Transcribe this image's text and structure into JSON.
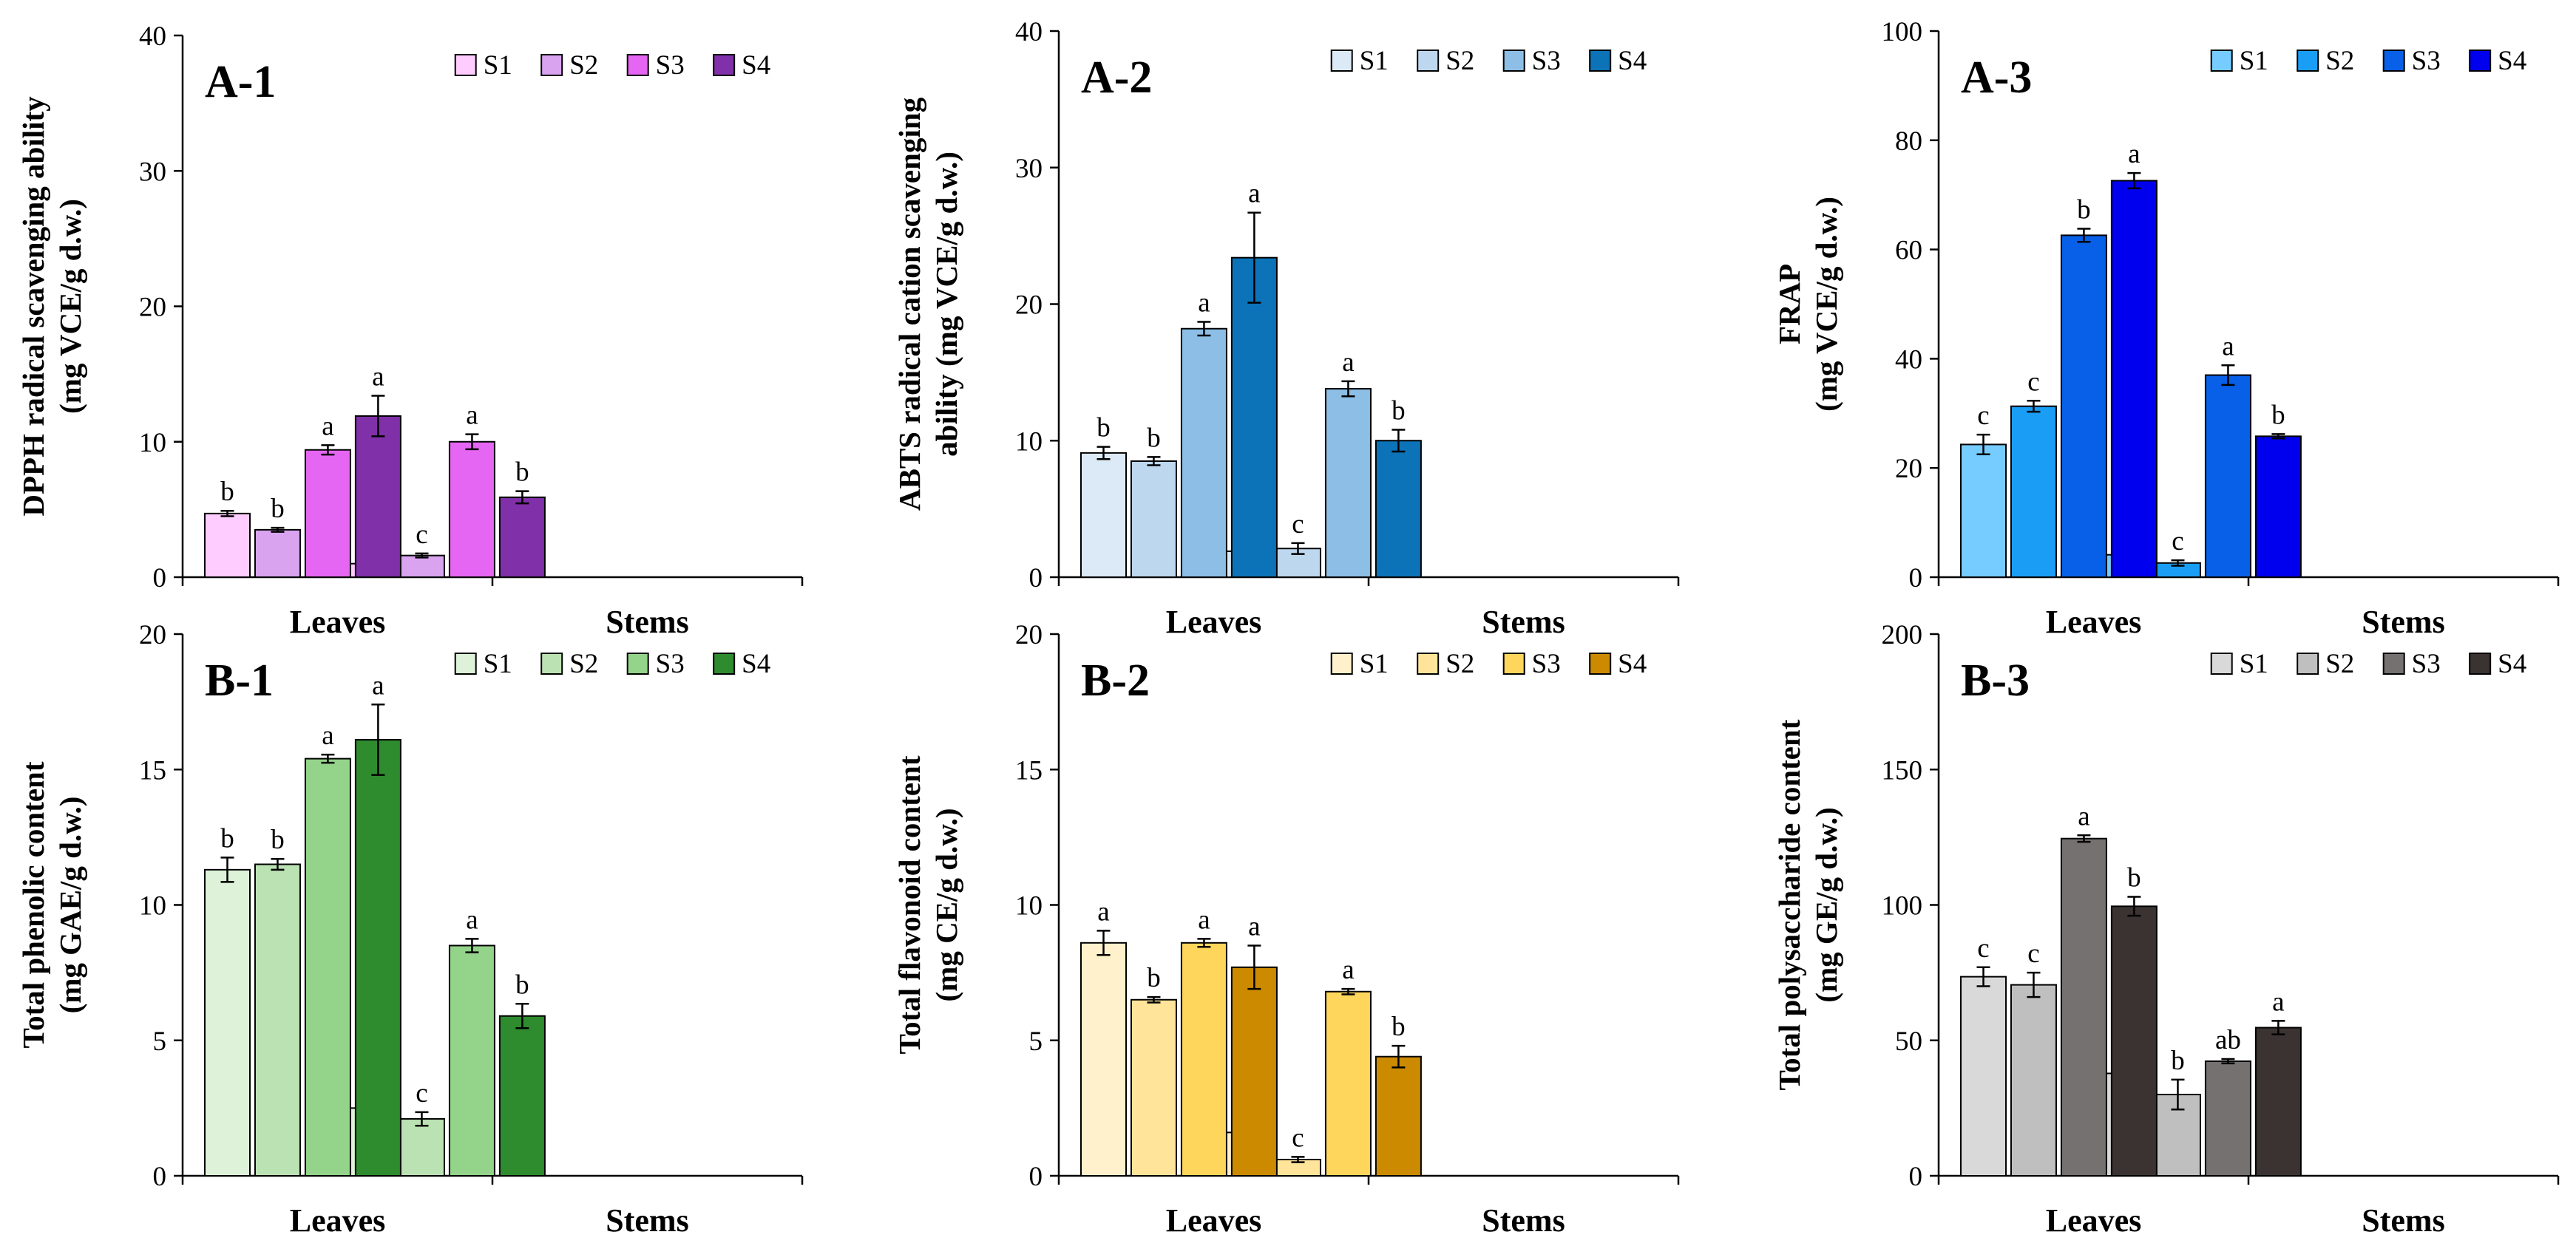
{
  "chart_data": [
    {
      "id": "A-1",
      "type": "bar",
      "panel_label": "A-1",
      "ylabel_lines": [
        "DPPH radical scavenging  ability",
        "(mg VCE/g d.w.)"
      ],
      "ylim": [
        0,
        40
      ],
      "yticks": [
        0,
        10,
        20,
        30,
        40
      ],
      "categories": [
        "Leaves",
        "Stems"
      ],
      "legend_position": "top-right",
      "series": [
        {
          "name": "S1",
          "color": "#FFCCFF",
          "values": [
            4.7,
            1.0
          ],
          "errors": [
            0.2,
            0.1
          ],
          "letters": [
            "b",
            "c"
          ]
        },
        {
          "name": "S2",
          "color": "#D9A3F0",
          "values": [
            3.5,
            1.6
          ],
          "errors": [
            0.15,
            0.15
          ],
          "letters": [
            "b",
            "c"
          ]
        },
        {
          "name": "S3",
          "color": "#E566F2",
          "values": [
            9.4,
            10.0
          ],
          "errors": [
            0.35,
            0.55
          ],
          "letters": [
            "a",
            "a"
          ]
        },
        {
          "name": "S4",
          "color": "#8030A8",
          "values": [
            11.9,
            5.9
          ],
          "errors": [
            1.5,
            0.45
          ],
          "letters": [
            "a",
            "b"
          ]
        }
      ]
    },
    {
      "id": "A-2",
      "type": "bar",
      "panel_label": "A-2",
      "ylabel_lines": [
        "ABTS radical cation scavenging",
        "ability (mg VCE/g d.w.)"
      ],
      "ylim": [
        0,
        40
      ],
      "yticks": [
        0,
        10,
        20,
        30,
        40
      ],
      "categories": [
        "Leaves",
        "Stems"
      ],
      "legend_position": "top-right",
      "series": [
        {
          "name": "S1",
          "color": "#DCEAF7",
          "values": [
            9.1,
            1.9
          ],
          "errors": [
            0.45,
            0.3
          ],
          "letters": [
            "b",
            "c"
          ]
        },
        {
          "name": "S2",
          "color": "#BDD7EE",
          "values": [
            8.5,
            2.1
          ],
          "errors": [
            0.3,
            0.4
          ],
          "letters": [
            "b",
            "c"
          ]
        },
        {
          "name": "S3",
          "color": "#8DBFE6",
          "values": [
            18.2,
            13.8
          ],
          "errors": [
            0.5,
            0.55
          ],
          "letters": [
            "a",
            "a"
          ]
        },
        {
          "name": "S4",
          "color": "#0C73B8",
          "values": [
            23.4,
            10.0
          ],
          "errors": [
            3.3,
            0.8
          ],
          "letters": [
            "a",
            "b"
          ]
        }
      ]
    },
    {
      "id": "A-3",
      "type": "bar",
      "panel_label": "A-3",
      "ylabel_lines": [
        "FRAP",
        "(mg VCE/g d.w.)"
      ],
      "ylim": [
        0,
        100
      ],
      "yticks": [
        0,
        20,
        40,
        60,
        80,
        100
      ],
      "categories": [
        "Leaves",
        "Stems"
      ],
      "legend_position": "top-right",
      "series": [
        {
          "name": "S1",
          "color": "#77CCFF",
          "values": [
            24.3,
            4.1
          ],
          "errors": [
            1.8,
            1.1
          ],
          "letters": [
            "c",
            "c"
          ]
        },
        {
          "name": "S2",
          "color": "#1A9EF5",
          "values": [
            31.3,
            2.6
          ],
          "errors": [
            1.0,
            0.5
          ],
          "letters": [
            "c",
            "c"
          ]
        },
        {
          "name": "S3",
          "color": "#0860E8",
          "values": [
            62.6,
            37.0
          ],
          "errors": [
            1.2,
            1.8
          ],
          "letters": [
            "b",
            "a"
          ]
        },
        {
          "name": "S4",
          "color": "#0000EE",
          "values": [
            72.6,
            25.8
          ],
          "errors": [
            1.4,
            0.4
          ],
          "letters": [
            "a",
            "b"
          ]
        }
      ]
    },
    {
      "id": "B-1",
      "type": "bar",
      "panel_label": "B-1",
      "ylabel_lines": [
        "Total phenolic content",
        "(mg GAE/g d.w.)"
      ],
      "ylim": [
        0,
        20
      ],
      "yticks": [
        0,
        5,
        10,
        15,
        20
      ],
      "categories": [
        "Leaves",
        "Stems"
      ],
      "legend_position": "top-right",
      "series": [
        {
          "name": "S1",
          "color": "#DDF2D8",
          "values": [
            11.3,
            2.5
          ],
          "errors": [
            0.45,
            0.05
          ],
          "letters": [
            "b",
            "c"
          ]
        },
        {
          "name": "S2",
          "color": "#BBE2B2",
          "values": [
            11.5,
            2.1
          ],
          "errors": [
            0.2,
            0.25
          ],
          "letters": [
            "b",
            "c"
          ]
        },
        {
          "name": "S3",
          "color": "#94D38A",
          "values": [
            15.4,
            8.5
          ],
          "errors": [
            0.15,
            0.25
          ],
          "letters": [
            "a",
            "a"
          ]
        },
        {
          "name": "S4",
          "color": "#2E8B2E",
          "values": [
            16.1,
            5.9
          ],
          "errors": [
            1.3,
            0.45
          ],
          "letters": [
            "a",
            "b"
          ]
        }
      ]
    },
    {
      "id": "B-2",
      "type": "bar",
      "panel_label": "B-2",
      "ylabel_lines": [
        "Total flavonoid content",
        "(mg CE/g d.w.)"
      ],
      "ylim": [
        0,
        20
      ],
      "yticks": [
        0,
        5,
        10,
        15,
        20
      ],
      "categories": [
        "Leaves",
        "Stems"
      ],
      "legend_position": "top-right",
      "series": [
        {
          "name": "S1",
          "color": "#FFF1CC",
          "values": [
            8.6,
            1.6
          ],
          "errors": [
            0.45,
            0.15
          ],
          "letters": [
            "a",
            "c"
          ]
        },
        {
          "name": "S2",
          "color": "#FFE49A",
          "values": [
            6.5,
            0.6
          ],
          "errors": [
            0.1,
            0.1
          ],
          "letters": [
            "b",
            "c"
          ]
        },
        {
          "name": "S3",
          "color": "#FFD65C",
          "values": [
            8.6,
            6.8
          ],
          "errors": [
            0.15,
            0.1
          ],
          "letters": [
            "a",
            "a"
          ]
        },
        {
          "name": "S4",
          "color": "#CC8A00",
          "values": [
            7.7,
            4.4
          ],
          "errors": [
            0.8,
            0.4
          ],
          "letters": [
            "a",
            "b"
          ]
        }
      ]
    },
    {
      "id": "B-3",
      "type": "bar",
      "panel_label": "B-3",
      "ylabel_lines": [
        "Total polysaccharide  content",
        "(mg GE/g d.w.)"
      ],
      "ylim": [
        0,
        200
      ],
      "yticks": [
        0,
        50,
        100,
        150,
        200
      ],
      "categories": [
        "Leaves",
        "Stems"
      ],
      "legend_position": "top-right",
      "series": [
        {
          "name": "S1",
          "color": "#D9D9D9",
          "values": [
            73.5,
            37.8
          ],
          "errors": [
            3.5,
            2.3
          ],
          "letters": [
            "c",
            "b"
          ]
        },
        {
          "name": "S2",
          "color": "#BFBFBF",
          "values": [
            70.5,
            30.0
          ],
          "errors": [
            4.5,
            5.5
          ],
          "letters": [
            "c",
            "b"
          ]
        },
        {
          "name": "S3",
          "color": "#767171",
          "values": [
            124.5,
            42.3
          ],
          "errors": [
            1.2,
            0.8
          ],
          "letters": [
            "a",
            "ab"
          ]
        },
        {
          "name": "S4",
          "color": "#3A3331",
          "values": [
            99.5,
            54.7
          ],
          "errors": [
            3.5,
            2.5
          ],
          "letters": [
            "b",
            "a"
          ]
        }
      ]
    }
  ]
}
